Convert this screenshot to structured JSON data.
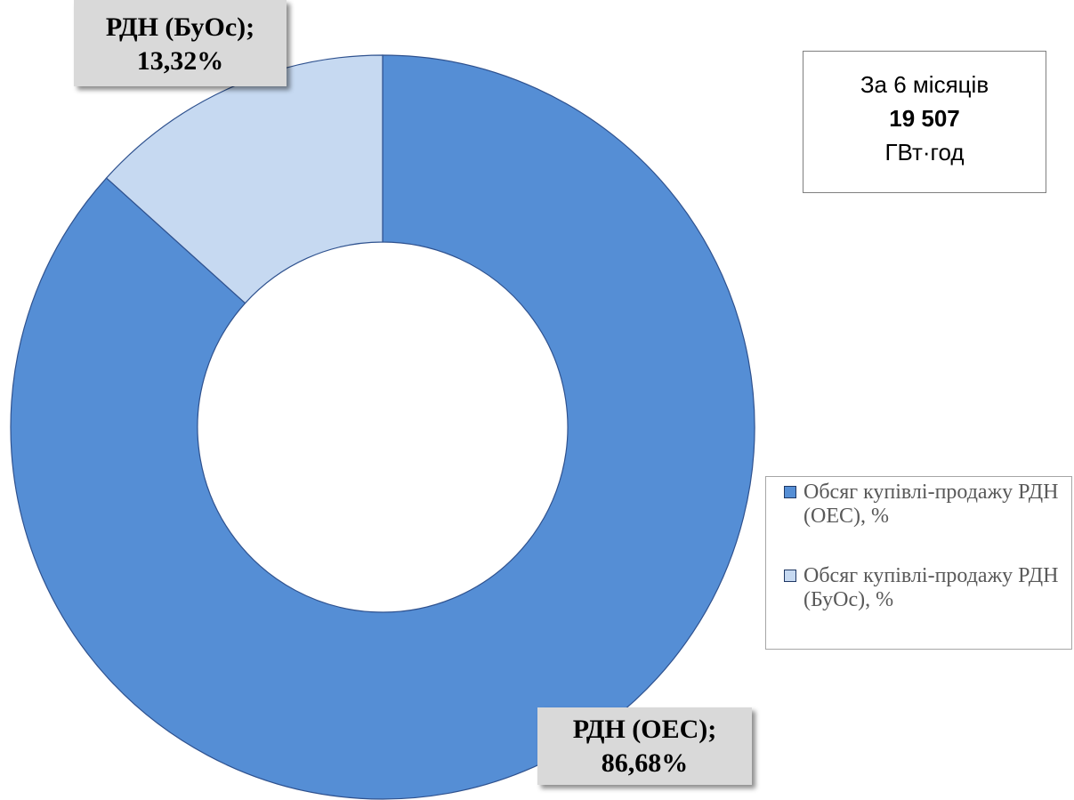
{
  "chart_data": {
    "type": "donut",
    "categories": [
      "Обсяг купівлі-продажу РДН (ОЕС), %",
      "Обсяг купівлі-продажу РДН (БуОс), %"
    ],
    "values": [
      86.68,
      13.32
    ],
    "value_labels": [
      "86,68%",
      "13,32%"
    ],
    "label_names": [
      "РДН (ОЕС);",
      "РДН (БуОс);"
    ],
    "colors": [
      "#558ed5",
      "#c6d9f1"
    ],
    "legend": "right",
    "annotation": {
      "period": "За 6 місяців",
      "total": "19 507",
      "unit": "ГВт·год"
    }
  }
}
